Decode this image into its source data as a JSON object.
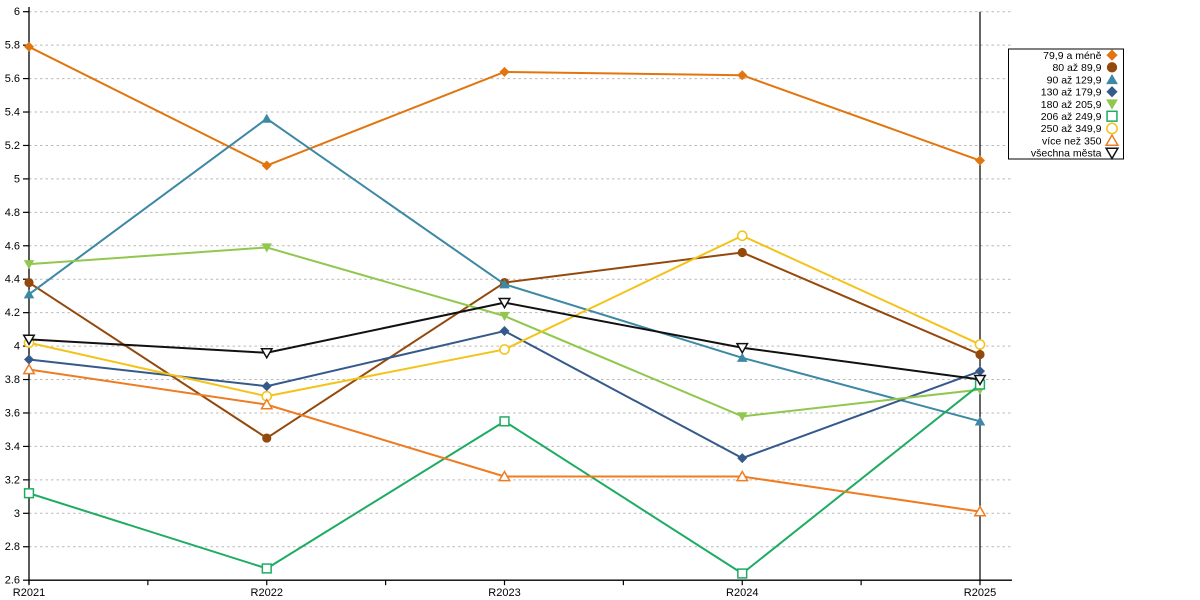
{
  "chart_data": {
    "type": "line",
    "title": "",
    "xlabel": "",
    "ylabel": "",
    "x": [
      "R2021",
      "R2022",
      "R2023",
      "R2024",
      "R2025"
    ],
    "ylim": [
      2.6,
      6.0
    ],
    "ytick_step": 0.2,
    "ytick_labels": [
      "6",
      "5.8",
      "5.6",
      "5.4",
      "5.2",
      "5",
      "4.8",
      "4.6",
      "4.4",
      "4.2",
      "4",
      "3.8",
      "3.6",
      "3.4",
      "3.2",
      "3",
      "2.8",
      "2.6"
    ],
    "grid": "horizontal-dashed",
    "grid_color": "#b9b9b9",
    "axis_color": "#000000",
    "legend_position": "top-right",
    "legend_border_color": "#000000",
    "series": [
      {
        "name": "79,9 a méně",
        "marker": "diamond-filled",
        "color": "#E2750E",
        "values": [
          5.79,
          5.08,
          5.64,
          5.62,
          5.11
        ]
      },
      {
        "name": "80 až 89,9",
        "marker": "circle-filled",
        "color": "#94490C",
        "values": [
          4.38,
          3.45,
          4.38,
          4.56,
          3.95
        ]
      },
      {
        "name": "90 až 129,9",
        "marker": "triangle-up-filled",
        "color": "#3C88A5",
        "values": [
          4.31,
          5.36,
          4.37,
          3.93,
          3.55
        ]
      },
      {
        "name": "130 až 179,9",
        "marker": "diamond-filled",
        "color": "#35598B",
        "values": [
          3.92,
          3.76,
          4.09,
          3.33,
          3.85
        ]
      },
      {
        "name": "180 až 205,9",
        "marker": "triangle-down-filled",
        "color": "#90C74E",
        "values": [
          4.49,
          4.59,
          4.18,
          3.58,
          3.74
        ]
      },
      {
        "name": "206 až 249,9",
        "marker": "square-open",
        "color": "#1FAC62",
        "values": [
          3.12,
          2.67,
          3.55,
          2.64,
          3.77
        ]
      },
      {
        "name": "250 až 349,9",
        "marker": "circle-open",
        "color": "#F3C318",
        "values": [
          4.02,
          3.7,
          3.98,
          4.66,
          4.01
        ]
      },
      {
        "name": "více než 350",
        "marker": "triangle-up-open",
        "color": "#EE7C23",
        "values": [
          3.86,
          3.65,
          3.22,
          3.22,
          3.01
        ]
      },
      {
        "name": "všechna města",
        "marker": "triangle-down-open",
        "color": "#111111",
        "values": [
          4.04,
          3.96,
          4.26,
          3.99,
          3.8
        ]
      }
    ]
  }
}
